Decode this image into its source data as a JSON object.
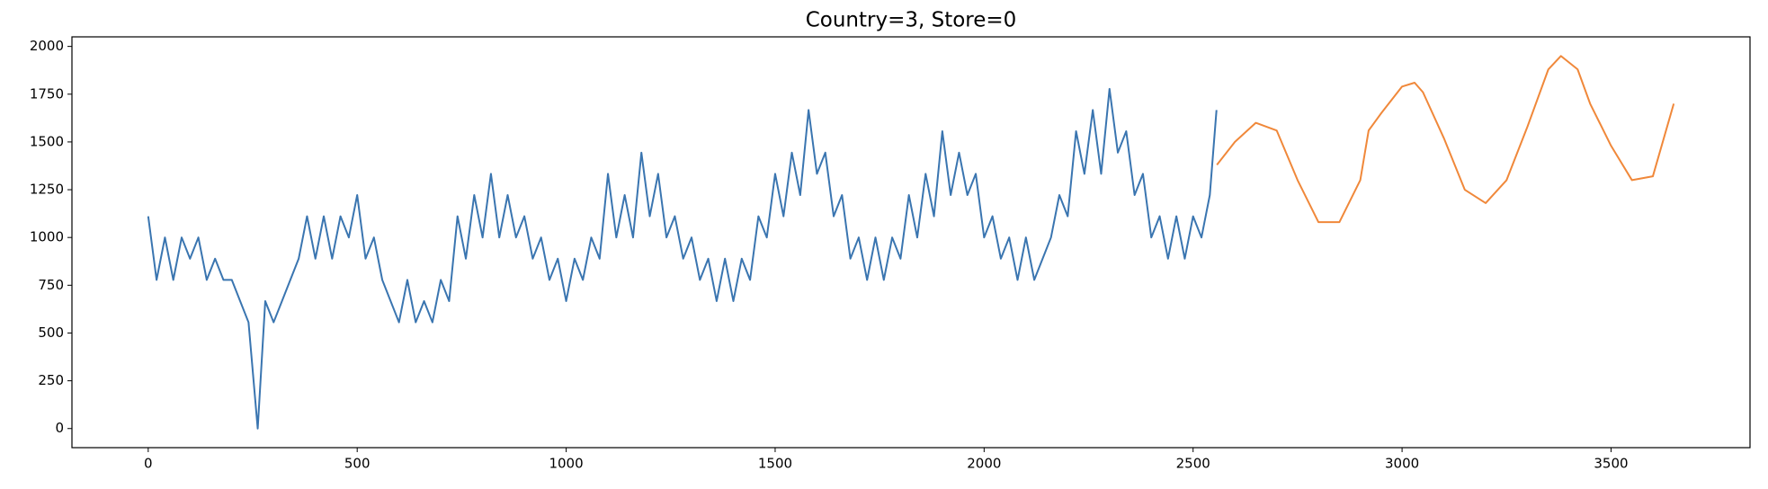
{
  "chart_data": {
    "type": "line",
    "title": "Country=3, Store=0",
    "xlim": [
      -182.5,
      3832.5
    ],
    "xticks": [
      0,
      500,
      1000,
      1500,
      2000,
      2500,
      3000,
      3500
    ],
    "ylim": [
      -100,
      2050
    ],
    "yticks": [
      0,
      250,
      500,
      750,
      1000,
      1250,
      1500,
      1750,
      2000
    ],
    "grid": false,
    "series": [
      {
        "color": "#3a75b0",
        "x": [
          0,
          20,
          40,
          60,
          80,
          100,
          120,
          140,
          160,
          180,
          200,
          220,
          240,
          262,
          280,
          300,
          320,
          340,
          360,
          380,
          400,
          420,
          440,
          460,
          480,
          500,
          520,
          540,
          560,
          580,
          600,
          620,
          640,
          660,
          680,
          700,
          720,
          740,
          760,
          780,
          800,
          820,
          840,
          860,
          880,
          900,
          920,
          940,
          960,
          980,
          1000,
          1020,
          1040,
          1060,
          1080,
          1100,
          1120,
          1140,
          1160,
          1180,
          1200,
          1220,
          1240,
          1260,
          1280,
          1300,
          1320,
          1340,
          1360,
          1380,
          1400,
          1420,
          1440,
          1460,
          1480,
          1500,
          1520,
          1540,
          1560,
          1580,
          1600,
          1620,
          1640,
          1660,
          1680,
          1700,
          1720,
          1740,
          1760,
          1780,
          1800,
          1820,
          1840,
          1860,
          1880,
          1900,
          1920,
          1940,
          1960,
          1980,
          2000,
          2020,
          2040,
          2060,
          2080,
          2100,
          2120,
          2140,
          2160,
          2180,
          2200,
          2220,
          2240,
          2260,
          2280,
          2300,
          2320,
          2340,
          2360,
          2380,
          2400,
          2420,
          2440,
          2460,
          2480,
          2500,
          2520,
          2540,
          2556
        ],
        "values": [
          1111,
          778,
          1000,
          778,
          1000,
          889,
          1000,
          778,
          889,
          778,
          778,
          667,
          556,
          0,
          667,
          556,
          667,
          778,
          889,
          1111,
          889,
          1111,
          889,
          1111,
          1000,
          1222,
          889,
          1000,
          778,
          667,
          556,
          778,
          556,
          667,
          556,
          778,
          667,
          1111,
          889,
          1222,
          1000,
          1333,
          1000,
          1222,
          1000,
          1111,
          889,
          1000,
          778,
          889,
          667,
          889,
          778,
          1000,
          889,
          1333,
          1000,
          1222,
          1000,
          1444,
          1111,
          1333,
          1000,
          1111,
          889,
          1000,
          778,
          889,
          667,
          889,
          667,
          889,
          778,
          1111,
          1000,
          1333,
          1111,
          1444,
          1222,
          1667,
          1333,
          1444,
          1111,
          1222,
          889,
          1000,
          778,
          1000,
          778,
          1000,
          889,
          1222,
          1000,
          1333,
          1111,
          1556,
          1222,
          1444,
          1222,
          1333,
          1000,
          1111,
          889,
          1000,
          778,
          1000,
          778,
          889,
          1000,
          1222,
          1111,
          1556,
          1333,
          1667,
          1333,
          1778,
          1444,
          1556,
          1222,
          1333,
          1000,
          1111,
          889,
          1111,
          889,
          1111,
          1000,
          1222,
          1667
        ]
      },
      {
        "color": "#f0883a",
        "x": [
          2557,
          2600,
          2650,
          2700,
          2750,
          2800,
          2850,
          2900,
          2920,
          2950,
          3000,
          3030,
          3050,
          3100,
          3150,
          3200,
          3250,
          3300,
          3350,
          3380,
          3420,
          3450,
          3500,
          3550,
          3600,
          3650
        ],
        "values": [
          1380,
          1500,
          1600,
          1560,
          1300,
          1080,
          1080,
          1300,
          1560,
          1650,
          1790,
          1810,
          1760,
          1520,
          1250,
          1180,
          1300,
          1580,
          1880,
          1950,
          1880,
          1700,
          1480,
          1300,
          1320,
          1700
        ]
      }
    ]
  }
}
